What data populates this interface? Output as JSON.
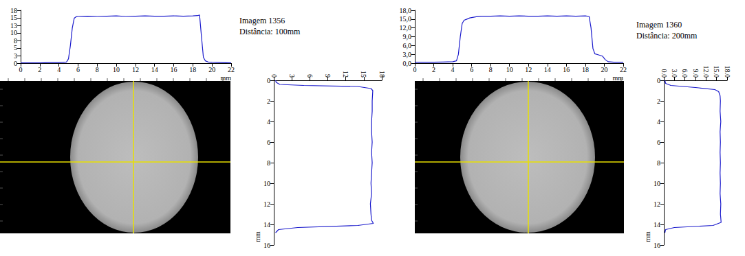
{
  "chart_data": [
    {
      "type": "line",
      "color": "#1a1acc",
      "annotations": [
        "Imagem 1356",
        "Distância: 100mm"
      ],
      "xlabel": "mm",
      "xlim": [
        0,
        22
      ],
      "xticks": [
        0,
        2,
        4,
        6,
        8,
        10,
        12,
        14,
        16,
        18,
        20,
        22
      ],
      "ylim": [
        0,
        18
      ],
      "yticks": [
        0,
        {
          "value": 2.571,
          "label": "3"
        },
        {
          "value": 5.143,
          "label": "5"
        },
        {
          "value": 7.714,
          "label": "8"
        },
        {
          "value": 10.286,
          "label": "10"
        },
        {
          "value": 12.857,
          "label": "13"
        },
        {
          "value": 15.429,
          "label": "15"
        },
        18
      ],
      "grid": false,
      "x": [
        0,
        1,
        2,
        3,
        4,
        4.8,
        5.0,
        5.2,
        5.4,
        5.6,
        5.8,
        6,
        7,
        8,
        9,
        10,
        11,
        12,
        13,
        14,
        15,
        16,
        17,
        18,
        18.5,
        18.7,
        18.9,
        19.1,
        19.3,
        19.6,
        20,
        21,
        22
      ],
      "y": [
        0.1,
        0.1,
        0.1,
        0.2,
        0.2,
        0.4,
        1.5,
        6,
        12,
        15.3,
        15.8,
        15.9,
        16.0,
        15.9,
        16.0,
        16.1,
        15.9,
        16.0,
        16.1,
        16.0,
        16.0,
        16.1,
        16.0,
        16.1,
        16.2,
        16.4,
        9,
        2,
        0.8,
        0.4,
        0.3,
        0.2,
        0.1
      ]
    },
    {
      "type": "line",
      "color": "#1a1acc",
      "ylabel": "mm",
      "xlim": [
        0,
        18
      ],
      "xticks": [
        0,
        3,
        6,
        9,
        12,
        15,
        18
      ],
      "ylim": [
        16,
        0
      ],
      "yticks": [
        0,
        2,
        4,
        6,
        8,
        10,
        12,
        14,
        16
      ],
      "grid": false,
      "x": [
        0.3,
        0.4,
        1,
        5,
        14,
        16.2,
        16.5,
        16.4,
        16.4,
        16.3,
        16.3,
        16.4,
        16.3,
        16.4,
        16.3,
        16.2,
        16.3,
        16.1,
        16.2,
        16.3,
        16.6,
        14,
        4,
        0.8,
        0.3
      ],
      "y": [
        0,
        0.2,
        0.4,
        0.5,
        0.6,
        0.8,
        1,
        2,
        3,
        4,
        5,
        6,
        7,
        8,
        9,
        10,
        11,
        12,
        13,
        13.6,
        13.9,
        14.1,
        14.3,
        14.5,
        14.8
      ]
    },
    {
      "type": "line",
      "color": "#1a1acc",
      "annotations": [
        "Imagem 1360",
        "Distância: 200mm"
      ],
      "xlabel": "mm",
      "xlim": [
        0,
        22
      ],
      "xticks": [
        0,
        2,
        4,
        6,
        8,
        10,
        12,
        14,
        16,
        18,
        20,
        22
      ],
      "ylim": [
        0,
        18
      ],
      "yticks": [
        {
          "value": 0,
          "label": "0,0"
        },
        {
          "value": 3,
          "label": "3,0"
        },
        {
          "value": 6,
          "label": "6,0"
        },
        {
          "value": 9,
          "label": "9,0"
        },
        {
          "value": 12,
          "label": "12,0"
        },
        {
          "value": 15,
          "label": "15,0"
        },
        {
          "value": 18,
          "label": "18,0"
        }
      ],
      "grid": false,
      "x": [
        0,
        1,
        2,
        3,
        4,
        4.4,
        4.6,
        4.8,
        5.0,
        5.2,
        5.5,
        5.8,
        6.5,
        7,
        8,
        9,
        10,
        11,
        12,
        13,
        14,
        15,
        16,
        17,
        18,
        18.4,
        18.6,
        18.8,
        19.0,
        19.4,
        19.8,
        20.1,
        20.4,
        21,
        22
      ],
      "y": [
        0.3,
        0.3,
        0.3,
        0.4,
        0.5,
        0.8,
        3,
        9,
        13.5,
        14.6,
        15.0,
        15.4,
        15.8,
        16.0,
        16.0,
        16.1,
        16.0,
        16.1,
        16.0,
        16.0,
        16.1,
        16.0,
        16.1,
        16.0,
        16.1,
        15.9,
        12,
        5,
        3.2,
        2.8,
        2.4,
        1.2,
        0.5,
        0.3,
        0.3
      ]
    },
    {
      "type": "line",
      "color": "#1a1acc",
      "ylabel": "mm",
      "xlim": [
        0,
        18
      ],
      "xticks": [
        {
          "value": 0,
          "label": "0.0"
        },
        {
          "value": 3,
          "label": "3.0"
        },
        {
          "value": 6,
          "label": "6.0"
        },
        {
          "value": 9,
          "label": "9.0"
        },
        {
          "value": 12,
          "label": "12.0"
        },
        {
          "value": 15,
          "label": "15.0"
        },
        {
          "value": 18,
          "label": "18.0"
        }
      ],
      "ylim": [
        16,
        0
      ],
      "yticks": [
        0,
        2,
        4,
        6,
        8,
        10,
        12,
        14,
        16
      ],
      "grid": false,
      "x": [
        0.3,
        0.5,
        2,
        9,
        14.5,
        15.6,
        16,
        16.1,
        16,
        16.2,
        16,
        16.1,
        16,
        16.1,
        16,
        16.1,
        16,
        16.2,
        16.1,
        16.3,
        14,
        3,
        0.5,
        0.3
      ],
      "y": [
        0,
        0.3,
        0.5,
        0.7,
        0.9,
        1.1,
        1.5,
        2,
        3,
        4,
        5,
        6,
        7,
        8,
        9,
        10,
        11,
        12,
        13,
        13.8,
        14.1,
        14.3,
        14.5,
        14.8
      ]
    }
  ]
}
